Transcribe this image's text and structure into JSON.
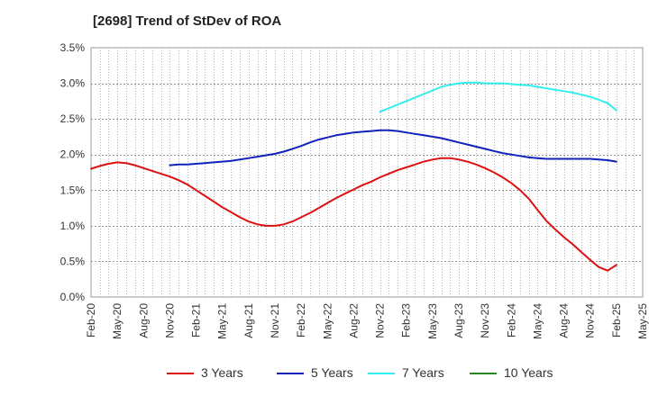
{
  "chart_data": {
    "type": "line",
    "title": "[2698]  Trend of StDev of ROA",
    "xlabel": "",
    "ylabel": "",
    "ylim": [
      0,
      3.5
    ],
    "y_ticks": [
      "0.0%",
      "0.5%",
      "1.0%",
      "1.5%",
      "2.0%",
      "2.5%",
      "3.0%",
      "3.5%"
    ],
    "y_tick_values": [
      0,
      0.5,
      1.0,
      1.5,
      2.0,
      2.5,
      3.0,
      3.5
    ],
    "x_ticks": [
      "Feb-20",
      "May-20",
      "Aug-20",
      "Nov-20",
      "Feb-21",
      "May-21",
      "Aug-21",
      "Nov-21",
      "Feb-22",
      "May-22",
      "Aug-22",
      "Nov-22",
      "Feb-23",
      "May-23",
      "Aug-23",
      "Nov-23",
      "Feb-24",
      "May-24",
      "Aug-24",
      "Nov-24",
      "Feb-25",
      "May-25"
    ],
    "grid": true,
    "legend_position": "bottom",
    "series": [
      {
        "name": "3 Years",
        "color": "#dd1111",
        "x": [
          "Feb-20",
          "Mar-20",
          "Apr-20",
          "May-20",
          "Jun-20",
          "Jul-20",
          "Aug-20",
          "Sep-20",
          "Oct-20",
          "Nov-20",
          "Dec-20",
          "Jan-21",
          "Feb-21",
          "Mar-21",
          "Apr-21",
          "May-21",
          "Jun-21",
          "Jul-21",
          "Aug-21",
          "Sep-21",
          "Oct-21",
          "Nov-21",
          "Dec-21",
          "Jan-22",
          "Feb-22",
          "Mar-22",
          "Apr-22",
          "May-22",
          "Jun-22",
          "Jul-22",
          "Aug-22",
          "Sep-22",
          "Oct-22",
          "Nov-22",
          "Dec-22",
          "Jan-23",
          "Feb-23",
          "Mar-23",
          "Apr-23",
          "May-23",
          "Jun-23",
          "Jul-23",
          "Aug-23",
          "Sep-23",
          "Oct-23",
          "Nov-23",
          "Dec-23",
          "Jan-24",
          "Feb-24",
          "Mar-24",
          "Apr-24",
          "May-24",
          "Jun-24",
          "Jul-24",
          "Aug-24",
          "Sep-24",
          "Oct-24",
          "Nov-24",
          "Dec-24",
          "Jan-25",
          "Feb-25"
        ],
        "values": [
          1.8,
          1.84,
          1.87,
          1.89,
          1.88,
          1.85,
          1.81,
          1.77,
          1.73,
          1.69,
          1.64,
          1.58,
          1.5,
          1.42,
          1.34,
          1.26,
          1.19,
          1.12,
          1.06,
          1.02,
          1.0,
          1.0,
          1.02,
          1.06,
          1.12,
          1.18,
          1.25,
          1.32,
          1.39,
          1.45,
          1.51,
          1.57,
          1.62,
          1.68,
          1.73,
          1.78,
          1.82,
          1.86,
          1.9,
          1.93,
          1.95,
          1.95,
          1.93,
          1.9,
          1.86,
          1.81,
          1.75,
          1.68,
          1.6,
          1.5,
          1.38,
          1.22,
          1.07,
          0.95,
          0.84,
          0.74,
          0.63,
          0.52,
          0.42,
          0.37,
          0.45
        ]
      },
      {
        "name": "5 Years",
        "color": "#1122bb",
        "x": [
          "Nov-20",
          "Dec-20",
          "Jan-21",
          "Feb-21",
          "Mar-21",
          "Apr-21",
          "May-21",
          "Jun-21",
          "Jul-21",
          "Aug-21",
          "Sep-21",
          "Oct-21",
          "Nov-21",
          "Dec-21",
          "Jan-22",
          "Feb-22",
          "Mar-22",
          "Apr-22",
          "May-22",
          "Jun-22",
          "Jul-22",
          "Aug-22",
          "Sep-22",
          "Oct-22",
          "Nov-22",
          "Dec-22",
          "Jan-23",
          "Feb-23",
          "Mar-23",
          "Apr-23",
          "May-23",
          "Jun-23",
          "Jul-23",
          "Aug-23",
          "Sep-23",
          "Oct-23",
          "Nov-23",
          "Dec-23",
          "Jan-24",
          "Feb-24",
          "Mar-24",
          "Apr-24",
          "May-24",
          "Jun-24",
          "Jul-24",
          "Aug-24",
          "Sep-24",
          "Oct-24",
          "Nov-24",
          "Dec-24",
          "Jan-25",
          "Feb-25"
        ],
        "values": [
          1.85,
          1.86,
          1.86,
          1.87,
          1.88,
          1.89,
          1.9,
          1.91,
          1.93,
          1.95,
          1.97,
          1.99,
          2.01,
          2.04,
          2.08,
          2.12,
          2.17,
          2.21,
          2.24,
          2.27,
          2.29,
          2.31,
          2.32,
          2.33,
          2.34,
          2.34,
          2.33,
          2.31,
          2.29,
          2.27,
          2.25,
          2.23,
          2.2,
          2.17,
          2.14,
          2.11,
          2.08,
          2.05,
          2.02,
          2.0,
          1.98,
          1.96,
          1.95,
          1.94,
          1.94,
          1.94,
          1.94,
          1.94,
          1.94,
          1.93,
          1.92,
          1.9
        ]
      },
      {
        "name": "7 Years",
        "color": "#33eeee",
        "x": [
          "Nov-22",
          "Dec-22",
          "Jan-23",
          "Feb-23",
          "Mar-23",
          "Apr-23",
          "May-23",
          "Jun-23",
          "Jul-23",
          "Aug-23",
          "Sep-23",
          "Oct-23",
          "Nov-23",
          "Dec-23",
          "Jan-24",
          "Feb-24",
          "Mar-24",
          "Apr-24",
          "May-24",
          "Jun-24",
          "Jul-24",
          "Aug-24",
          "Sep-24",
          "Oct-24",
          "Nov-24",
          "Dec-24",
          "Jan-25",
          "Feb-25"
        ],
        "values": [
          2.6,
          2.65,
          2.7,
          2.75,
          2.8,
          2.85,
          2.9,
          2.95,
          2.98,
          3.0,
          3.01,
          3.01,
          3.0,
          3.0,
          3.0,
          2.99,
          2.98,
          2.97,
          2.95,
          2.93,
          2.91,
          2.89,
          2.87,
          2.84,
          2.81,
          2.77,
          2.72,
          2.62
        ]
      },
      {
        "name": "10 Years",
        "color": "#228822",
        "x": [],
        "values": []
      }
    ]
  }
}
